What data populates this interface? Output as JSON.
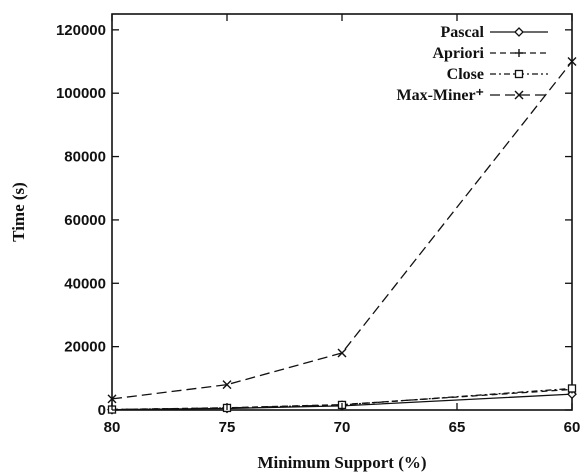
{
  "chart_data": {
    "type": "line",
    "xlabel": "Minimum Support (%)",
    "ylabel": "Time (s)",
    "xlim": [
      80,
      60
    ],
    "ylim": [
      0,
      125000
    ],
    "x_reversed": true,
    "xticks": [
      80,
      75,
      70,
      65,
      60
    ],
    "yticks": [
      0,
      20000,
      40000,
      60000,
      80000,
      100000,
      120000
    ],
    "legend_position": "top-right",
    "grid": false,
    "x": [
      80,
      75,
      70,
      60
    ],
    "series": [
      {
        "name": "Pascal",
        "values": [
          100,
          500,
          1300,
          5000
        ],
        "line": "solid",
        "marker": "diamond"
      },
      {
        "name": "Apriori",
        "values": [
          150,
          700,
          1700,
          6500
        ],
        "line": "dashed",
        "marker": "plus"
      },
      {
        "name": "Close",
        "values": [
          150,
          650,
          1600,
          6800
        ],
        "line": "dashdot",
        "marker": "square"
      },
      {
        "name": "Max-Miner⁺",
        "values": [
          3500,
          8000,
          18000,
          110000
        ],
        "line": "longdash",
        "marker": "cross"
      }
    ]
  }
}
